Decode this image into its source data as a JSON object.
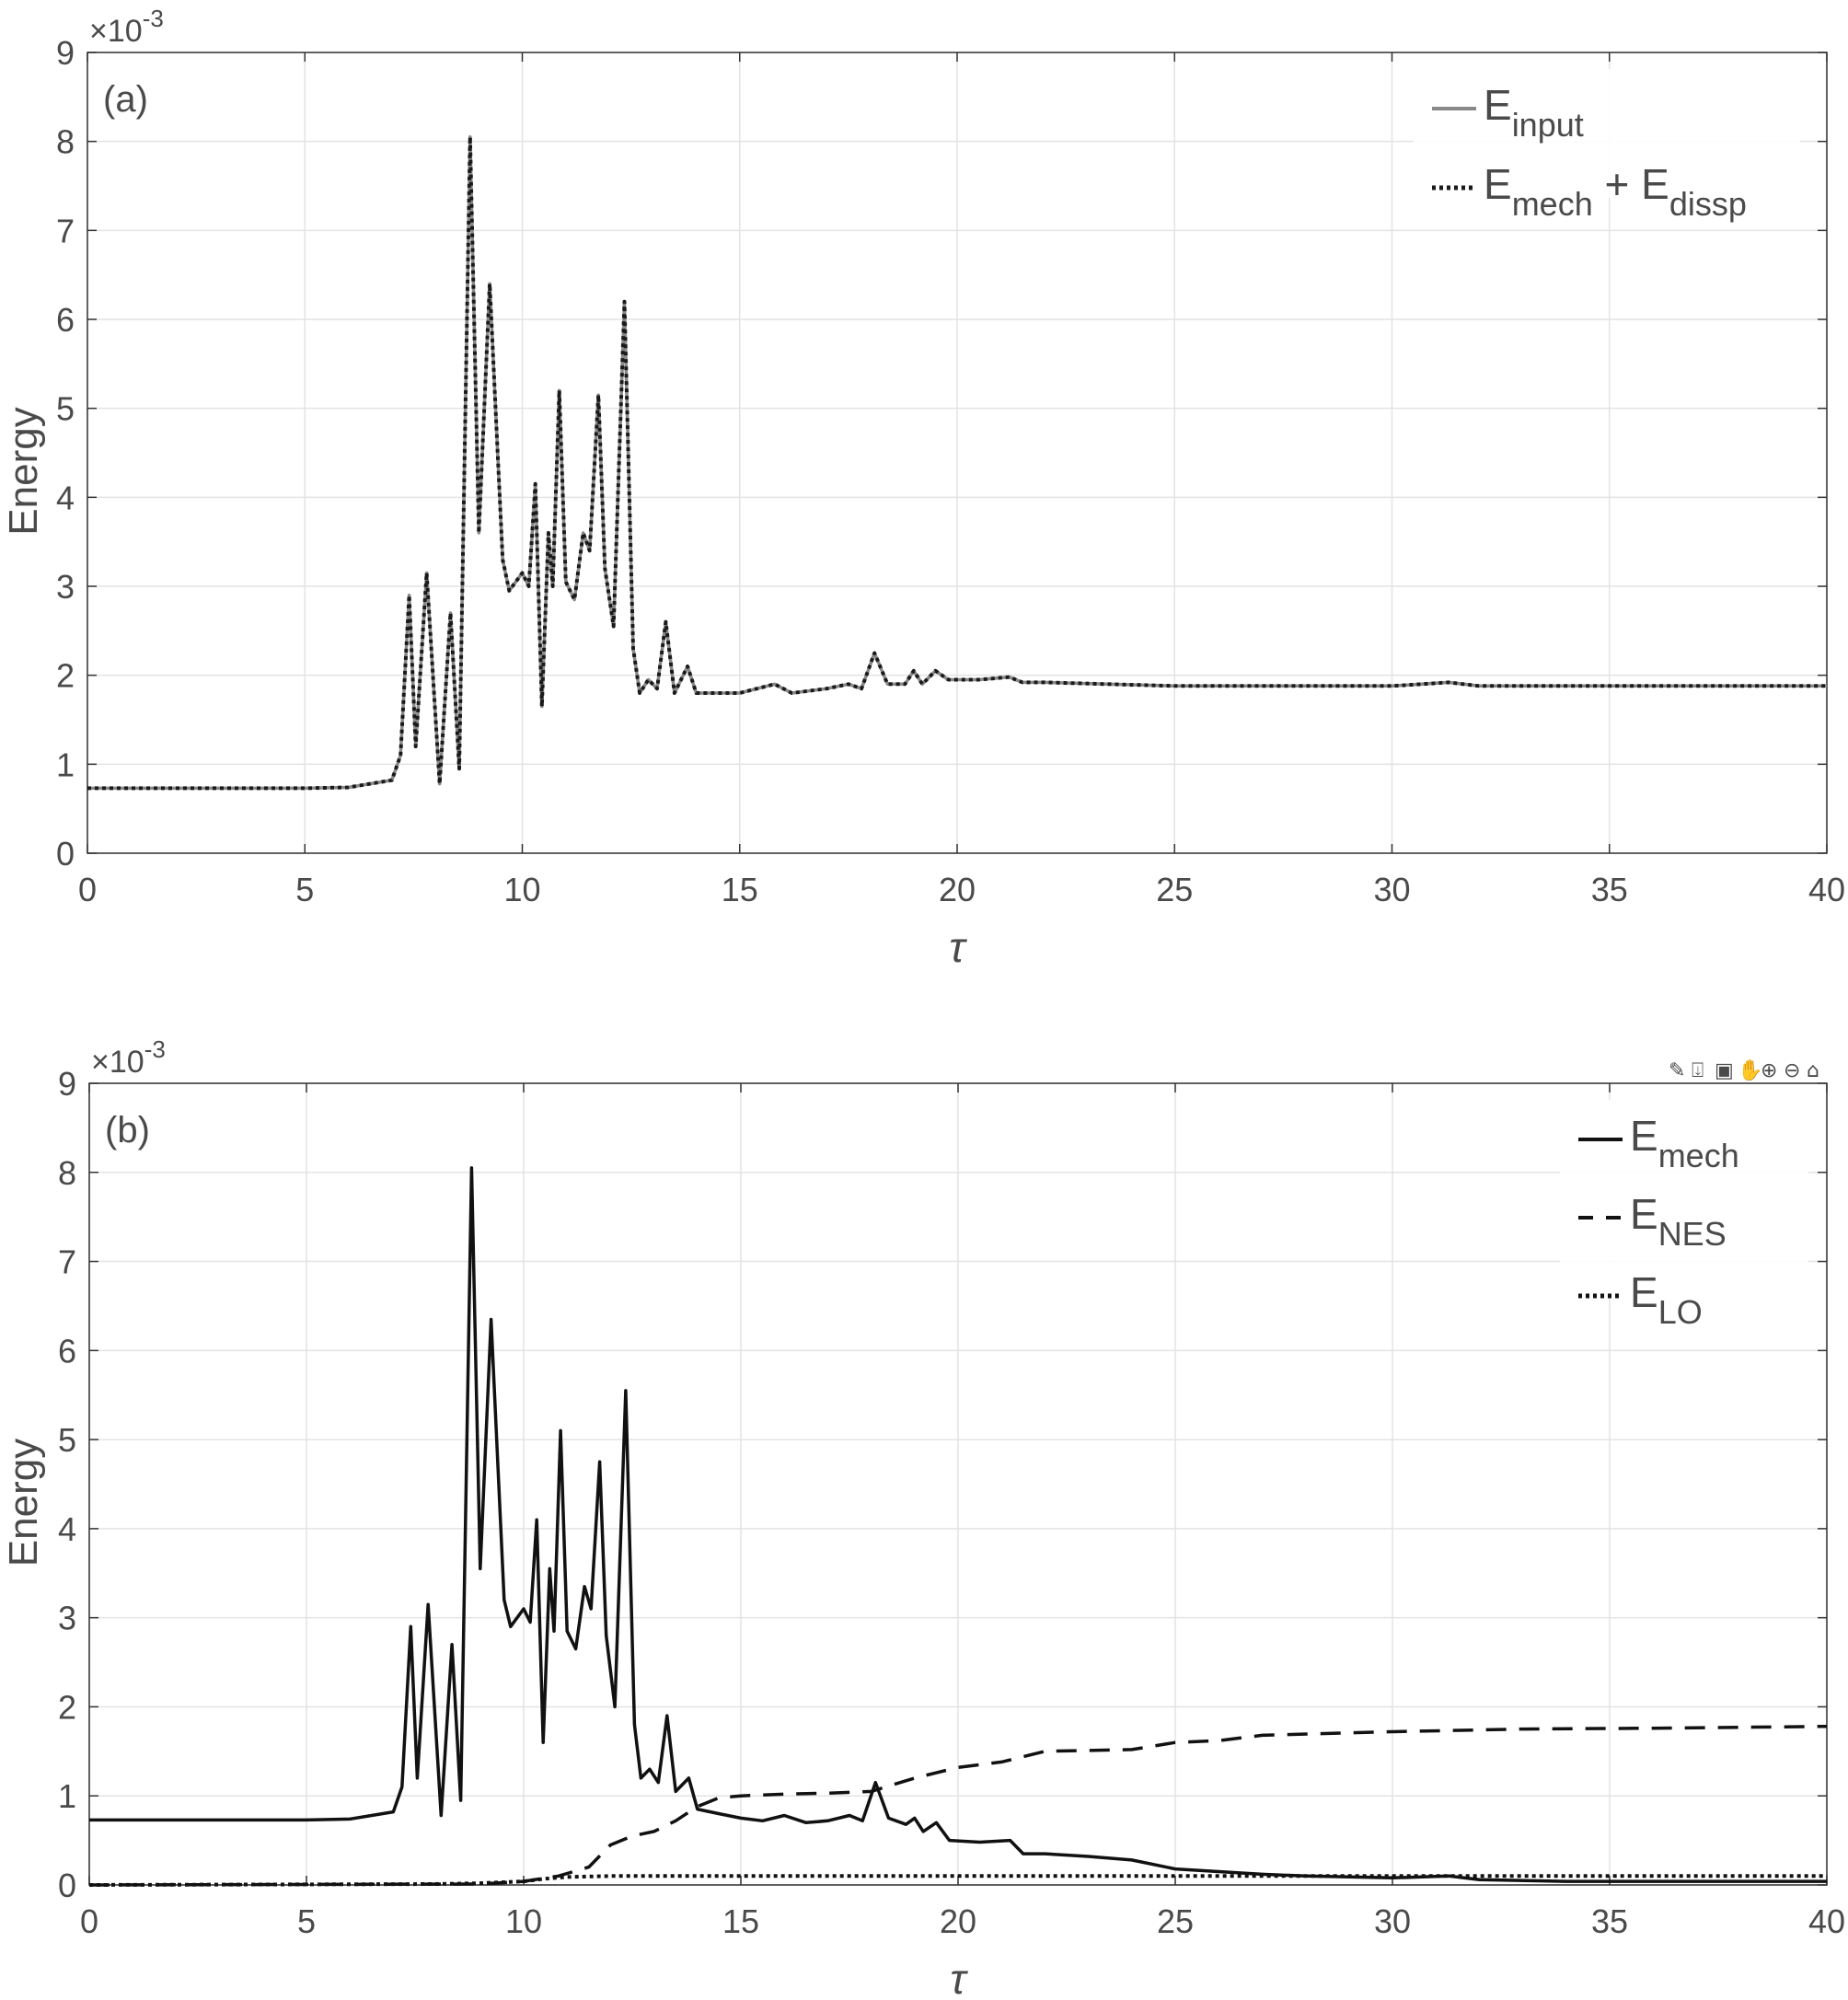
{
  "chart_data": [
    {
      "type": "line",
      "panel_label": "(a)",
      "ylabel": "Energy",
      "xlabel": "τ",
      "exponent_label": "×10",
      "exponent_power": "-3",
      "xlim": [
        0,
        40
      ],
      "ylim": [
        0,
        9
      ],
      "xticks": [
        "0",
        "5",
        "10",
        "15",
        "20",
        "25",
        "30",
        "35",
        "40"
      ],
      "yticks": [
        "0",
        "1",
        "2",
        "3",
        "4",
        "5",
        "6",
        "7",
        "8",
        "9"
      ],
      "grid": true,
      "legend_position": "top-right",
      "legend": [
        {
          "parts": [
            {
              "t": "E"
            },
            {
              "t": "input",
              "sub": true
            }
          ]
        },
        {
          "parts": [
            {
              "t": "E"
            },
            {
              "t": "mech",
              "sub": true
            },
            {
              "t": " + E"
            },
            {
              "t": "dissp",
              "sub": true
            }
          ]
        }
      ],
      "series": [
        {
          "color": "#888888",
          "dash": "solid",
          "points": [
            [
              0,
              0.73
            ],
            [
              5,
              0.73
            ],
            [
              6,
              0.74
            ],
            [
              6.5,
              0.78
            ],
            [
              7,
              0.82
            ],
            [
              7.2,
              1.1
            ],
            [
              7.4,
              2.9
            ],
            [
              7.55,
              1.2
            ],
            [
              7.8,
              3.15
            ],
            [
              8.1,
              0.78
            ],
            [
              8.35,
              2.7
            ],
            [
              8.55,
              0.95
            ],
            [
              8.8,
              8.05
            ],
            [
              9.0,
              3.6
            ],
            [
              9.25,
              6.4
            ],
            [
              9.55,
              3.3
            ],
            [
              9.7,
              2.95
            ],
            [
              10.0,
              3.15
            ],
            [
              10.15,
              3.0
            ],
            [
              10.3,
              4.15
            ],
            [
              10.45,
              1.65
            ],
            [
              10.6,
              3.6
            ],
            [
              10.7,
              3.0
            ],
            [
              10.85,
              5.2
            ],
            [
              11.0,
              3.05
            ],
            [
              11.2,
              2.85
            ],
            [
              11.4,
              3.6
            ],
            [
              11.55,
              3.4
            ],
            [
              11.75,
              5.15
            ],
            [
              11.9,
              3.2
            ],
            [
              12.1,
              2.55
            ],
            [
              12.35,
              6.2
            ],
            [
              12.55,
              2.3
            ],
            [
              12.7,
              1.8
            ],
            [
              12.9,
              1.95
            ],
            [
              13.1,
              1.85
            ],
            [
              13.3,
              2.6
            ],
            [
              13.5,
              1.8
            ],
            [
              13.8,
              2.1
            ],
            [
              14.0,
              1.8
            ],
            [
              15,
              1.8
            ],
            [
              15.8,
              1.9
            ],
            [
              16.2,
              1.8
            ],
            [
              17,
              1.85
            ],
            [
              17.5,
              1.9
            ],
            [
              17.8,
              1.85
            ],
            [
              18.1,
              2.25
            ],
            [
              18.4,
              1.9
            ],
            [
              18.8,
              1.9
            ],
            [
              19,
              2.05
            ],
            [
              19.2,
              1.9
            ],
            [
              19.5,
              2.05
            ],
            [
              19.8,
              1.95
            ],
            [
              20.5,
              1.95
            ],
            [
              21.2,
              1.98
            ],
            [
              21.5,
              1.92
            ],
            [
              22,
              1.92
            ],
            [
              25,
              1.88
            ],
            [
              30,
              1.88
            ],
            [
              31.3,
              1.92
            ],
            [
              32,
              1.88
            ],
            [
              40,
              1.88
            ]
          ]
        },
        {
          "color": "#1a1a1a",
          "dash": "dotted",
          "points": [
            [
              0,
              0.73
            ],
            [
              5,
              0.73
            ],
            [
              6,
              0.74
            ],
            [
              6.5,
              0.78
            ],
            [
              7,
              0.82
            ],
            [
              7.2,
              1.1
            ],
            [
              7.4,
              2.9
            ],
            [
              7.55,
              1.2
            ],
            [
              7.8,
              3.15
            ],
            [
              8.1,
              0.78
            ],
            [
              8.35,
              2.7
            ],
            [
              8.55,
              0.95
            ],
            [
              8.8,
              8.05
            ],
            [
              9.0,
              3.6
            ],
            [
              9.25,
              6.4
            ],
            [
              9.55,
              3.3
            ],
            [
              9.7,
              2.95
            ],
            [
              10.0,
              3.15
            ],
            [
              10.15,
              3.0
            ],
            [
              10.3,
              4.15
            ],
            [
              10.45,
              1.65
            ],
            [
              10.6,
              3.6
            ],
            [
              10.7,
              3.0
            ],
            [
              10.85,
              5.2
            ],
            [
              11.0,
              3.05
            ],
            [
              11.2,
              2.85
            ],
            [
              11.4,
              3.6
            ],
            [
              11.55,
              3.4
            ],
            [
              11.75,
              5.15
            ],
            [
              11.9,
              3.2
            ],
            [
              12.1,
              2.55
            ],
            [
              12.35,
              6.2
            ],
            [
              12.55,
              2.3
            ],
            [
              12.7,
              1.8
            ],
            [
              12.9,
              1.95
            ],
            [
              13.1,
              1.85
            ],
            [
              13.3,
              2.6
            ],
            [
              13.5,
              1.8
            ],
            [
              13.8,
              2.1
            ],
            [
              14.0,
              1.8
            ],
            [
              15,
              1.8
            ],
            [
              15.8,
              1.9
            ],
            [
              16.2,
              1.8
            ],
            [
              17,
              1.85
            ],
            [
              17.5,
              1.9
            ],
            [
              17.8,
              1.85
            ],
            [
              18.1,
              2.25
            ],
            [
              18.4,
              1.9
            ],
            [
              18.8,
              1.9
            ],
            [
              19,
              2.05
            ],
            [
              19.2,
              1.9
            ],
            [
              19.5,
              2.05
            ],
            [
              19.8,
              1.95
            ],
            [
              20.5,
              1.95
            ],
            [
              21.2,
              1.98
            ],
            [
              21.5,
              1.92
            ],
            [
              22,
              1.92
            ],
            [
              25,
              1.88
            ],
            [
              30,
              1.88
            ],
            [
              31.3,
              1.92
            ],
            [
              32,
              1.88
            ],
            [
              40,
              1.88
            ]
          ]
        }
      ]
    },
    {
      "type": "line",
      "panel_label": "(b)",
      "ylabel": "Energy",
      "xlabel": "τ",
      "exponent_label": "×10",
      "exponent_power": "-3",
      "xlim": [
        0,
        40
      ],
      "ylim": [
        0,
        9
      ],
      "xticks": [
        "0",
        "5",
        "10",
        "15",
        "20",
        "25",
        "30",
        "35",
        "40"
      ],
      "yticks": [
        "0",
        "1",
        "2",
        "3",
        "4",
        "5",
        "6",
        "7",
        "8",
        "9"
      ],
      "grid": true,
      "legend_position": "top-right",
      "legend": [
        {
          "parts": [
            {
              "t": "E"
            },
            {
              "t": "mech",
              "sub": true
            }
          ]
        },
        {
          "parts": [
            {
              "t": "E"
            },
            {
              "t": "NES",
              "sub": true
            }
          ]
        },
        {
          "parts": [
            {
              "t": "E"
            },
            {
              "t": "LO",
              "sub": true
            }
          ]
        }
      ],
      "series": [
        {
          "color": "#111111",
          "dash": "solid",
          "points": [
            [
              0,
              0.73
            ],
            [
              5,
              0.73
            ],
            [
              6,
              0.74
            ],
            [
              6.5,
              0.78
            ],
            [
              7,
              0.82
            ],
            [
              7.2,
              1.1
            ],
            [
              7.4,
              2.9
            ],
            [
              7.55,
              1.2
            ],
            [
              7.8,
              3.15
            ],
            [
              8.1,
              0.78
            ],
            [
              8.35,
              2.7
            ],
            [
              8.55,
              0.95
            ],
            [
              8.8,
              8.05
            ],
            [
              9.0,
              3.55
            ],
            [
              9.25,
              6.35
            ],
            [
              9.55,
              3.2
            ],
            [
              9.7,
              2.9
            ],
            [
              10.0,
              3.1
            ],
            [
              10.15,
              2.95
            ],
            [
              10.3,
              4.1
            ],
            [
              10.45,
              1.6
            ],
            [
              10.6,
              3.55
            ],
            [
              10.7,
              2.85
            ],
            [
              10.85,
              5.1
            ],
            [
              11.0,
              2.85
            ],
            [
              11.2,
              2.65
            ],
            [
              11.4,
              3.35
            ],
            [
              11.55,
              3.1
            ],
            [
              11.75,
              4.75
            ],
            [
              11.9,
              2.8
            ],
            [
              12.1,
              2.0
            ],
            [
              12.35,
              5.55
            ],
            [
              12.55,
              1.8
            ],
            [
              12.7,
              1.2
            ],
            [
              12.9,
              1.3
            ],
            [
              13.1,
              1.15
            ],
            [
              13.3,
              1.9
            ],
            [
              13.5,
              1.05
            ],
            [
              13.8,
              1.2
            ],
            [
              14.0,
              0.85
            ],
            [
              14.5,
              0.8
            ],
            [
              15,
              0.75
            ],
            [
              15.5,
              0.72
            ],
            [
              16,
              0.78
            ],
            [
              16.5,
              0.7
            ],
            [
              17,
              0.72
            ],
            [
              17.5,
              0.78
            ],
            [
              17.8,
              0.72
            ],
            [
              18.1,
              1.15
            ],
            [
              18.4,
              0.75
            ],
            [
              18.8,
              0.68
            ],
            [
              19,
              0.75
            ],
            [
              19.2,
              0.6
            ],
            [
              19.5,
              0.7
            ],
            [
              19.8,
              0.5
            ],
            [
              20.5,
              0.48
            ],
            [
              21.2,
              0.5
            ],
            [
              21.5,
              0.35
            ],
            [
              22,
              0.35
            ],
            [
              23,
              0.32
            ],
            [
              24,
              0.28
            ],
            [
              25,
              0.18
            ],
            [
              26,
              0.15
            ],
            [
              27,
              0.12
            ],
            [
              28,
              0.1
            ],
            [
              30,
              0.08
            ],
            [
              31.3,
              0.1
            ],
            [
              32,
              0.06
            ],
            [
              34,
              0.04
            ],
            [
              37,
              0.04
            ],
            [
              40,
              0.04
            ]
          ]
        },
        {
          "color": "#111111",
          "dash": "dashed",
          "points": [
            [
              0,
              0
            ],
            [
              9,
              0.01
            ],
            [
              10,
              0.04
            ],
            [
              10.8,
              0.1
            ],
            [
              11.5,
              0.2
            ],
            [
              12,
              0.45
            ],
            [
              12.5,
              0.55
            ],
            [
              13,
              0.6
            ],
            [
              13.5,
              0.72
            ],
            [
              14,
              0.88
            ],
            [
              14.5,
              0.98
            ],
            [
              15,
              1.0
            ],
            [
              16,
              1.02
            ],
            [
              17,
              1.03
            ],
            [
              18,
              1.05
            ],
            [
              19,
              1.2
            ],
            [
              20,
              1.32
            ],
            [
              21,
              1.38
            ],
            [
              22,
              1.5
            ],
            [
              24,
              1.52
            ],
            [
              25,
              1.6
            ],
            [
              26,
              1.62
            ],
            [
              27,
              1.68
            ],
            [
              30,
              1.72
            ],
            [
              33,
              1.75
            ],
            [
              36,
              1.76
            ],
            [
              40,
              1.78
            ]
          ]
        },
        {
          "color": "#111111",
          "dash": "dotted",
          "points": [
            [
              0,
              0
            ],
            [
              8,
              0.01
            ],
            [
              9,
              0.02
            ],
            [
              10,
              0.04
            ],
            [
              10.5,
              0.07
            ],
            [
              11,
              0.09
            ],
            [
              12,
              0.1
            ],
            [
              15,
              0.1
            ],
            [
              20,
              0.1
            ],
            [
              40,
              0.1
            ]
          ]
        }
      ]
    }
  ],
  "toolbar": {
    "icons": [
      "brush-icon",
      "data-tips-icon",
      "save-icon",
      "pan-icon",
      "zoom-in-icon",
      "zoom-out-icon",
      "home-icon"
    ]
  }
}
